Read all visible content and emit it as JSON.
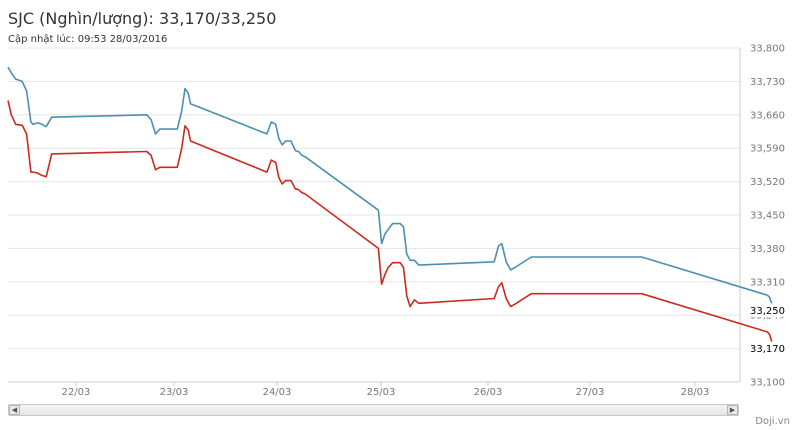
{
  "header": {
    "title": "SJC (Nghìn/lượng): 33,170/33,250",
    "subtitle": "Cập nhật lúc: 09:53 28/03/2016"
  },
  "footer": {
    "credit": "Doji.vn"
  },
  "scrollbar": {
    "left_icon": "chevron-left-icon",
    "right_icon": "chevron-right-icon"
  },
  "chart_data": {
    "type": "line",
    "x_tick_labels": [
      "22/03",
      "23/03",
      "24/03",
      "25/03",
      "26/03",
      "27/03",
      "28/03"
    ],
    "y_tick_labels": [
      "33,800",
      "33,730",
      "33,660",
      "33,590",
      "33,520",
      "33,450",
      "33,380",
      "33,310",
      "33,240",
      "33,170",
      "33,100"
    ],
    "y_ticks": [
      33800,
      33730,
      33660,
      33590,
      33520,
      33450,
      33380,
      33310,
      33240,
      33170,
      33100
    ],
    "ylim": [
      33100,
      33800
    ],
    "xlim": [
      21.65,
      28.35
    ],
    "grid": true,
    "x_axis_unit_note": "x = day of March 2016",
    "current_labels": [
      {
        "text": "33,250",
        "value": 33250,
        "color": "#4a90b0"
      },
      {
        "text": "33,170",
        "value": 33170,
        "color": "#cc2a1e"
      }
    ],
    "series": [
      {
        "color": "#4a90b0",
        "points": [
          [
            21.65,
            33760
          ],
          [
            21.68,
            33748
          ],
          [
            21.72,
            33735
          ],
          [
            21.78,
            33730
          ],
          [
            21.82,
            33710
          ],
          [
            21.86,
            33645
          ],
          [
            21.88,
            33640
          ],
          [
            21.92,
            33643
          ],
          [
            21.96,
            33640
          ],
          [
            22.0,
            33635
          ],
          [
            22.05,
            33655
          ],
          [
            22.92,
            33660
          ],
          [
            22.96,
            33650
          ],
          [
            23.0,
            33620
          ],
          [
            23.04,
            33630
          ],
          [
            23.2,
            33630
          ],
          [
            23.24,
            33668
          ],
          [
            23.27,
            33715
          ],
          [
            23.3,
            33705
          ],
          [
            23.32,
            33683
          ],
          [
            24.02,
            33620
          ],
          [
            24.06,
            33645
          ],
          [
            24.1,
            33640
          ],
          [
            24.13,
            33610
          ],
          [
            24.16,
            33597
          ],
          [
            24.19,
            33605
          ],
          [
            24.24,
            33605
          ],
          [
            24.28,
            33585
          ],
          [
            24.31,
            33583
          ],
          [
            24.34,
            33575
          ],
          [
            24.37,
            33572
          ],
          [
            25.04,
            33460
          ],
          [
            25.07,
            33390
          ],
          [
            25.1,
            33410
          ],
          [
            25.13,
            33420
          ],
          [
            25.17,
            33432
          ],
          [
            25.24,
            33432
          ],
          [
            25.27,
            33425
          ],
          [
            25.3,
            33368
          ],
          [
            25.33,
            33355
          ],
          [
            25.37,
            33355
          ],
          [
            25.41,
            33345
          ],
          [
            26.1,
            33352
          ],
          [
            26.14,
            33385
          ],
          [
            26.17,
            33390
          ],
          [
            26.21,
            33352
          ],
          [
            26.25,
            33335
          ],
          [
            26.29,
            33340
          ],
          [
            26.44,
            33362
          ],
          [
            27.45,
            33362
          ],
          [
            28.6,
            33282
          ],
          [
            28.62,
            33278
          ],
          [
            28.65,
            33258
          ],
          [
            28.67,
            33256
          ]
        ]
      },
      {
        "color": "#cc2a1e",
        "points": [
          [
            21.65,
            33690
          ],
          [
            21.68,
            33660
          ],
          [
            21.72,
            33640
          ],
          [
            21.78,
            33638
          ],
          [
            21.82,
            33620
          ],
          [
            21.86,
            33540
          ],
          [
            21.88,
            33540
          ],
          [
            21.92,
            33538
          ],
          [
            21.96,
            33533
          ],
          [
            22.0,
            33530
          ],
          [
            22.05,
            33578
          ],
          [
            22.92,
            33583
          ],
          [
            22.96,
            33575
          ],
          [
            23.0,
            33545
          ],
          [
            23.04,
            33550
          ],
          [
            23.2,
            33550
          ],
          [
            23.24,
            33590
          ],
          [
            23.27,
            33637
          ],
          [
            23.3,
            33628
          ],
          [
            23.32,
            33605
          ],
          [
            24.02,
            33540
          ],
          [
            24.06,
            33565
          ],
          [
            24.1,
            33560
          ],
          [
            24.13,
            33528
          ],
          [
            24.16,
            33515
          ],
          [
            24.19,
            33522
          ],
          [
            24.24,
            33522
          ],
          [
            24.28,
            33505
          ],
          [
            24.31,
            33503
          ],
          [
            24.34,
            33497
          ],
          [
            24.37,
            33494
          ],
          [
            25.04,
            33380
          ],
          [
            25.07,
            33305
          ],
          [
            25.1,
            33325
          ],
          [
            25.13,
            33340
          ],
          [
            25.17,
            33350
          ],
          [
            25.24,
            33350
          ],
          [
            25.27,
            33340
          ],
          [
            25.3,
            33280
          ],
          [
            25.33,
            33258
          ],
          [
            25.37,
            33272
          ],
          [
            25.41,
            33265
          ],
          [
            26.1,
            33275
          ],
          [
            26.14,
            33300
          ],
          [
            26.17,
            33308
          ],
          [
            26.21,
            33275
          ],
          [
            26.25,
            33258
          ],
          [
            26.29,
            33263
          ],
          [
            26.44,
            33285
          ],
          [
            27.45,
            33285
          ],
          [
            28.6,
            33205
          ],
          [
            28.62,
            33200
          ],
          [
            28.65,
            33178
          ],
          [
            28.67,
            33174
          ]
        ]
      }
    ]
  }
}
